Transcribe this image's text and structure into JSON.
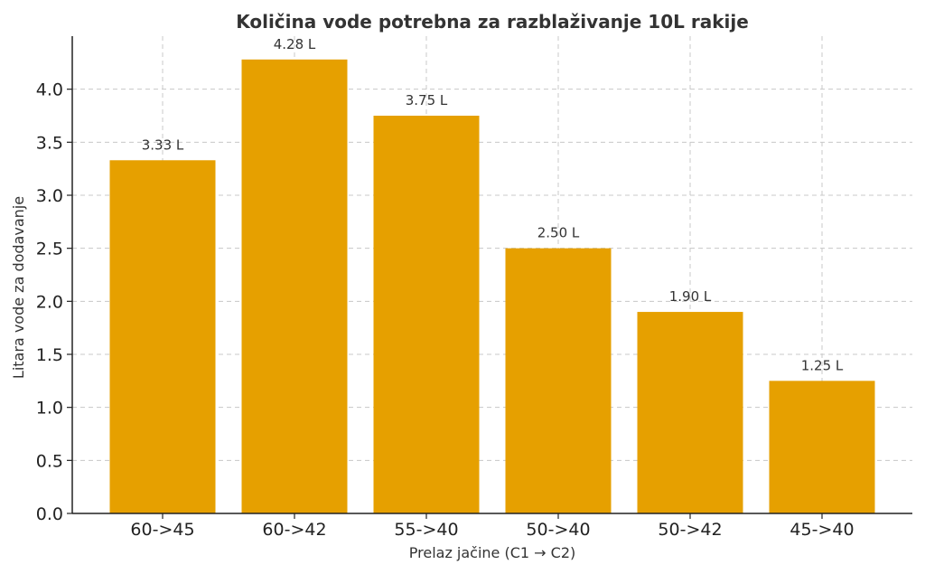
{
  "chart_data": {
    "type": "bar",
    "title": "Količina vode potrebna za razblaživanje 10L rakije",
    "xlabel": "Prelaz jačine (C1 → C2)",
    "ylabel": "Litara vode za dodavanje",
    "categories": [
      "60->45",
      "60->42",
      "55->40",
      "50->40",
      "50->42",
      "45->40"
    ],
    "values": [
      3.33,
      4.28,
      3.75,
      2.5,
      1.9,
      1.25
    ],
    "data_labels": [
      "3.33 L",
      "4.28 L",
      "3.75 L",
      "2.50 L",
      "1.90 L",
      "1.25 L"
    ],
    "ylim": [
      0,
      4.5
    ],
    "yticks": [
      0.0,
      0.5,
      1.0,
      1.5,
      2.0,
      2.5,
      3.0,
      3.5,
      4.0
    ],
    "ytick_labels": [
      "0.0",
      "0.5",
      "1.0",
      "1.5",
      "2.0",
      "2.5",
      "3.0",
      "3.5",
      "4.0"
    ],
    "grid": true,
    "bar_color": "#e6a000"
  }
}
